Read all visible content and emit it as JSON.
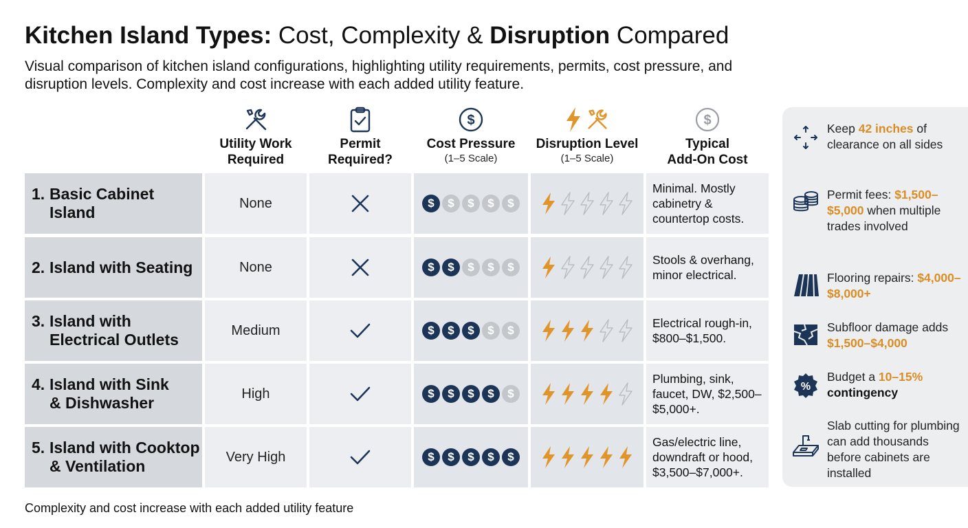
{
  "title": {
    "part1_bold": "Kitchen Island Types:",
    "part2": " Cost, Complexity & ",
    "part3_bold": "Disruption",
    "part4": " Compared"
  },
  "subtitle": "Visual comparison of kitchen island configurations, highlighting utility requirements, permits, cost pressure, and disruption levels. Complexity and cost increase with each added utility feature.",
  "columns": {
    "utility": {
      "title_line1": "Utility Work",
      "title_line2": "Required",
      "icon": "tools-icon"
    },
    "permit": {
      "title_line1": "Permit",
      "title_line2": "Required?",
      "icon": "clipboard-check-icon"
    },
    "cost": {
      "title_line1": "Cost Pressure",
      "subtitle": "(1–5 Scale)",
      "icon": "dollar-circle-icon"
    },
    "disruption": {
      "title_line1": "Disruption Level",
      "subtitle": "(1–5 Scale)",
      "icon": "lightning-tools-icon"
    },
    "addon": {
      "title_line1": "Typical",
      "title_line2": "Add-On Cost",
      "icon": "dollar-circle-gray-icon"
    }
  },
  "chart_data": {
    "type": "table",
    "scale_max": 5,
    "coin_symbol": "$",
    "colors": {
      "cost_on": "#1c3557",
      "cost_off": "#c3c7cc",
      "disruption_on": "#e0952b",
      "disruption_off": "#b9bdc3"
    },
    "rows": [
      {
        "num": "1.",
        "name_line1": "Basic Cabinet",
        "name_line2": "Island",
        "utility": "None",
        "permit": false,
        "permit_icon": "x-icon",
        "cost": 1,
        "disruption": 1,
        "addon": "Minimal. Mostly cabinetry & countertop costs."
      },
      {
        "num": "2.",
        "name_line1": "Island with Seating",
        "name_line2": "",
        "utility": "None",
        "permit": false,
        "permit_icon": "x-icon",
        "cost": 2,
        "disruption": 1,
        "addon": "Stools & overhang, minor electrical."
      },
      {
        "num": "3.",
        "name_line1": "Island with",
        "name_line2": "Electrical Outlets",
        "utility": "Medium",
        "permit": true,
        "permit_icon": "check-icon",
        "cost": 3,
        "disruption": 3,
        "addon": "Electrical rough-in, $800–$1,500."
      },
      {
        "num": "4.",
        "name_line1": "Island with Sink",
        "name_line2": "& Dishwasher",
        "utility": "High",
        "permit": true,
        "permit_icon": "check-icon",
        "cost": 4,
        "disruption": 4,
        "addon": "Plumbing, sink, faucet, DW, $2,500–$5,000+."
      },
      {
        "num": "5.",
        "name_line1": "Island with Cooktop",
        "name_line2": "& Ventilation",
        "utility": "Very High",
        "permit": true,
        "permit_icon": "check-icon",
        "cost": 5,
        "disruption": 5,
        "addon": "Gas/electric line, downdraft or hood, $3,500–$7,000+."
      }
    ]
  },
  "sidebar": {
    "tips": [
      {
        "icon": "arrows-clearance-icon",
        "pre": "Keep ",
        "highlight": "42 inches",
        "post": " of clearance on all sides"
      },
      {
        "icon": "coins-stack-icon",
        "pre": "Permit fees: ",
        "highlight": "$1,500–$5,000",
        "post": " when multiple trades involved"
      },
      {
        "icon": "flooring-icon",
        "pre": "Flooring repairs: ",
        "highlight": "$4,000–$8,000+",
        "post": ""
      },
      {
        "icon": "subfloor-damage-icon",
        "pre": "Subfloor damage adds ",
        "highlight": "$1,500–$4,000",
        "post": ""
      },
      {
        "icon": "percent-badge-icon",
        "pre": "Budget a ",
        "highlight": "10–15%",
        "bold_post": "contingency"
      },
      {
        "icon": "slab-cutting-icon",
        "pre": "Slab cutting for plumbing can add thousands before cabinets are installed",
        "highlight": "",
        "post": ""
      }
    ]
  },
  "footer": "Complexity and cost increase with each added utility feature"
}
